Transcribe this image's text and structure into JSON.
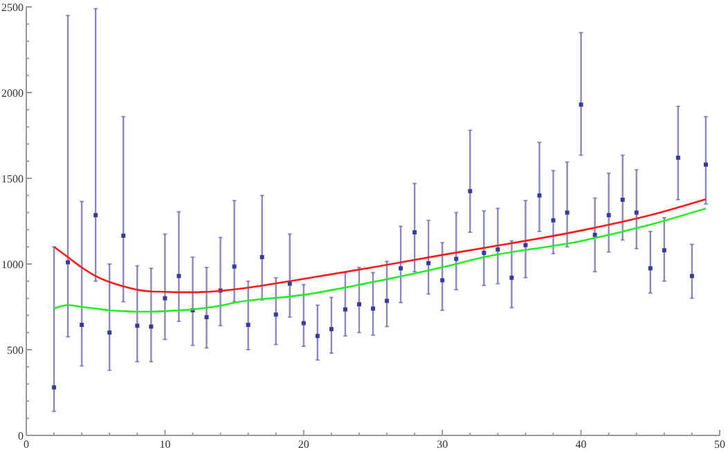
{
  "chart_data": {
    "type": "scatter",
    "xlim": [
      0,
      50
    ],
    "ylim": [
      0,
      2500
    ],
    "xticks": [
      0,
      {
        "value": 2,
        "label": null
      },
      {
        "value": 4,
        "label": null
      },
      {
        "value": 6,
        "label": null
      },
      {
        "value": 8,
        "label": null
      },
      10,
      {
        "value": 12,
        "label": null
      },
      {
        "value": 14,
        "label": null
      },
      {
        "value": 16,
        "label": null
      },
      {
        "value": 18,
        "label": null
      },
      20,
      {
        "value": 22,
        "label": null
      },
      {
        "value": 24,
        "label": null
      },
      {
        "value": 26,
        "label": null
      },
      {
        "value": 28,
        "label": null
      },
      30,
      {
        "value": 32,
        "label": null
      },
      {
        "value": 34,
        "label": null
      },
      {
        "value": 36,
        "label": null
      },
      {
        "value": 38,
        "label": null
      },
      40,
      {
        "value": 42,
        "label": null
      },
      {
        "value": 44,
        "label": null
      },
      {
        "value": 46,
        "label": null
      },
      {
        "value": 48,
        "label": null
      },
      50
    ],
    "yticks": [
      0,
      {
        "value": 100,
        "label": null
      },
      {
        "value": 200,
        "label": null
      },
      {
        "value": 300,
        "label": null
      },
      {
        "value": 400,
        "label": null
      },
      500,
      {
        "value": 600,
        "label": null
      },
      {
        "value": 700,
        "label": null
      },
      {
        "value": 800,
        "label": null
      },
      {
        "value": 900,
        "label": null
      },
      1000,
      {
        "value": 1100,
        "label": null
      },
      {
        "value": 1200,
        "label": null
      },
      {
        "value": 1300,
        "label": null
      },
      {
        "value": 1400,
        "label": null
      },
      1500,
      {
        "value": 1600,
        "label": null
      },
      {
        "value": 1700,
        "label": null
      },
      {
        "value": 1800,
        "label": null
      },
      {
        "value": 1900,
        "label": null
      },
      2000,
      {
        "value": 2100,
        "label": null
      },
      {
        "value": 2200,
        "label": null
      },
      {
        "value": 2300,
        "label": null
      },
      {
        "value": 2400,
        "label": null
      },
      2500
    ],
    "grid": false,
    "series": [
      {
        "type": "scatter",
        "marker": "square",
        "color": "#3a3a9a",
        "x": [
          2,
          3,
          4,
          5,
          6,
          7,
          8,
          9,
          10,
          11,
          12,
          13,
          14,
          15,
          16,
          17,
          18,
          19,
          20,
          21,
          22,
          23,
          24,
          25,
          26,
          27,
          28,
          29,
          30,
          31,
          32,
          33,
          34,
          35,
          36,
          37,
          38,
          39,
          40,
          41,
          42,
          43,
          44,
          45,
          46,
          47,
          48,
          49
        ],
        "values": [
          280,
          1010,
          645,
          1285,
          600,
          1165,
          640,
          635,
          800,
          930,
          730,
          690,
          845,
          985,
          645,
          1040,
          705,
          885,
          655,
          580,
          620,
          735,
          765,
          740,
          785,
          975,
          1185,
          1005,
          905,
          1030,
          1425,
          1065,
          1085,
          920,
          1110,
          1400,
          1255,
          1300,
          1930,
          1170,
          1285,
          1375,
          1300,
          975,
          1080,
          1620,
          930,
          1580
        ],
        "errors": [
          [
            140,
            1100
          ],
          [
            575,
            2450
          ],
          [
            405,
            1365
          ],
          [
            900,
            2490
          ],
          [
            380,
            1000
          ],
          [
            780,
            1860
          ],
          [
            430,
            990
          ],
          [
            430,
            975
          ],
          [
            560,
            1175
          ],
          [
            665,
            1305
          ],
          [
            525,
            1040
          ],
          [
            510,
            980
          ],
          [
            640,
            1155
          ],
          [
            780,
            1370
          ],
          [
            500,
            900
          ],
          [
            790,
            1400
          ],
          [
            530,
            920
          ],
          [
            690,
            1175
          ],
          [
            520,
            880
          ],
          [
            440,
            760
          ],
          [
            480,
            805
          ],
          [
            580,
            950
          ],
          [
            600,
            980
          ],
          [
            585,
            950
          ],
          [
            635,
            1015
          ],
          [
            775,
            1220
          ],
          [
            955,
            1470
          ],
          [
            825,
            1255
          ],
          [
            730,
            1125
          ],
          [
            850,
            1300
          ],
          [
            1185,
            1780
          ],
          [
            875,
            1310
          ],
          [
            885,
            1325
          ],
          [
            745,
            1135
          ],
          [
            920,
            1370
          ],
          [
            1190,
            1710
          ],
          [
            1060,
            1545
          ],
          [
            1100,
            1595
          ],
          [
            1635,
            2350
          ],
          [
            955,
            1385
          ],
          [
            1070,
            1530
          ],
          [
            1140,
            1635
          ],
          [
            1090,
            1550
          ],
          [
            830,
            1190
          ],
          [
            900,
            1270
          ],
          [
            1375,
            1920
          ],
          [
            800,
            1115
          ],
          [
            1350,
            1860
          ]
        ]
      },
      {
        "type": "line",
        "color": "#ff1a1a",
        "x": [
          2,
          3,
          4,
          5,
          6,
          7,
          8,
          9,
          10,
          11,
          12,
          13,
          14,
          15,
          16,
          20,
          25,
          30,
          33,
          40,
          45,
          49
        ],
        "values": [
          1100,
          1040,
          980,
          930,
          895,
          870,
          850,
          840,
          838,
          835,
          835,
          838,
          843,
          852,
          862,
          913,
          981,
          1053,
          1094,
          1195,
          1285,
          1378
        ]
      },
      {
        "type": "line",
        "color": "#22ee22",
        "x": [
          2,
          3,
          4,
          5,
          6,
          7,
          8,
          9,
          10,
          11,
          12,
          13,
          14,
          15,
          20,
          25,
          30,
          33,
          40,
          45,
          49
        ],
        "values": [
          740,
          760,
          750,
          740,
          730,
          725,
          722,
          722,
          725,
          730,
          735,
          745,
          757,
          774,
          820,
          895,
          981,
          1040,
          1134,
          1230,
          1324
        ]
      }
    ]
  }
}
